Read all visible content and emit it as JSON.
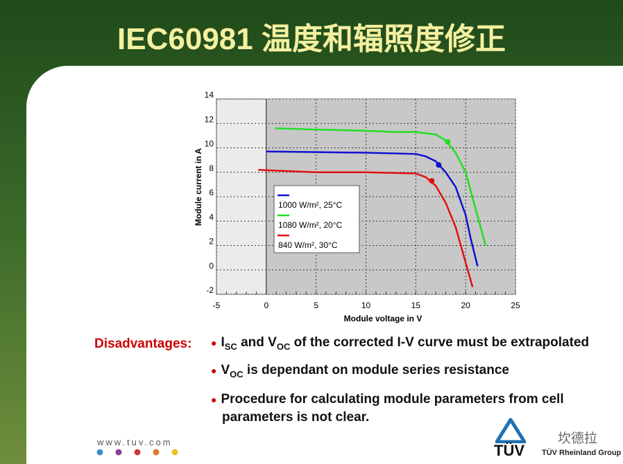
{
  "title": "IEC60981 温度和辐照度修正",
  "chart_data": {
    "type": "line",
    "x_label": "Module voltage in V",
    "y_label": "Module current in A",
    "xlim": [
      -5,
      25
    ],
    "ylim": [
      -2,
      14
    ],
    "xticks": [
      -5,
      0,
      5,
      10,
      15,
      20,
      25
    ],
    "yticks": [
      -2,
      0,
      2,
      4,
      6,
      8,
      10,
      12,
      14
    ],
    "grid": true,
    "series": [
      {
        "name": "1000 W/m², 25°C",
        "color": "#1010d0",
        "x": [
          0,
          5,
          10,
          15,
          16,
          17,
          18,
          19,
          20,
          20.5,
          21.2
        ],
        "values": [
          9.7,
          9.65,
          9.6,
          9.5,
          9.3,
          8.9,
          8.0,
          6.8,
          4.5,
          2.6,
          0.3
        ],
        "marker": {
          "x": 17.3,
          "y": 8.6
        }
      },
      {
        "name": "1080 W/m², 20°C",
        "color": "#20e020",
        "x": [
          0.9,
          5,
          10,
          13,
          15,
          17,
          18,
          19,
          20,
          21,
          22
        ],
        "values": [
          11.6,
          11.5,
          11.4,
          11.3,
          11.3,
          11.1,
          10.6,
          9.6,
          8.0,
          5.0,
          2.0
        ],
        "marker": {
          "x": 18.2,
          "y": 10.5
        }
      },
      {
        "name": "840 W/m², 30°C",
        "color": "#e01010",
        "x": [
          -0.8,
          5,
          10,
          15,
          16,
          17,
          18,
          19,
          20,
          20.7
        ],
        "values": [
          8.2,
          8.0,
          8.0,
          7.9,
          7.6,
          6.9,
          5.5,
          3.5,
          0.6,
          -1.4
        ],
        "marker": {
          "x": 16.6,
          "y": 7.3
        }
      }
    ]
  },
  "disadvantages": {
    "label": "Disadvantages:",
    "bullets": [
      [
        "I",
        "SC",
        " and V",
        "OC",
        " of the corrected I-V curve must be extrapolated"
      ],
      [
        "V",
        "OC",
        " is dependant on module series resistance"
      ],
      [
        "Procedure for calculating module parameters from cell parameters is not clear."
      ]
    ]
  },
  "footer": {
    "website": "www.tuv.com",
    "logo": "TÜV",
    "company": "TÜV Rheinland Group",
    "watermark": "坎德拉"
  }
}
